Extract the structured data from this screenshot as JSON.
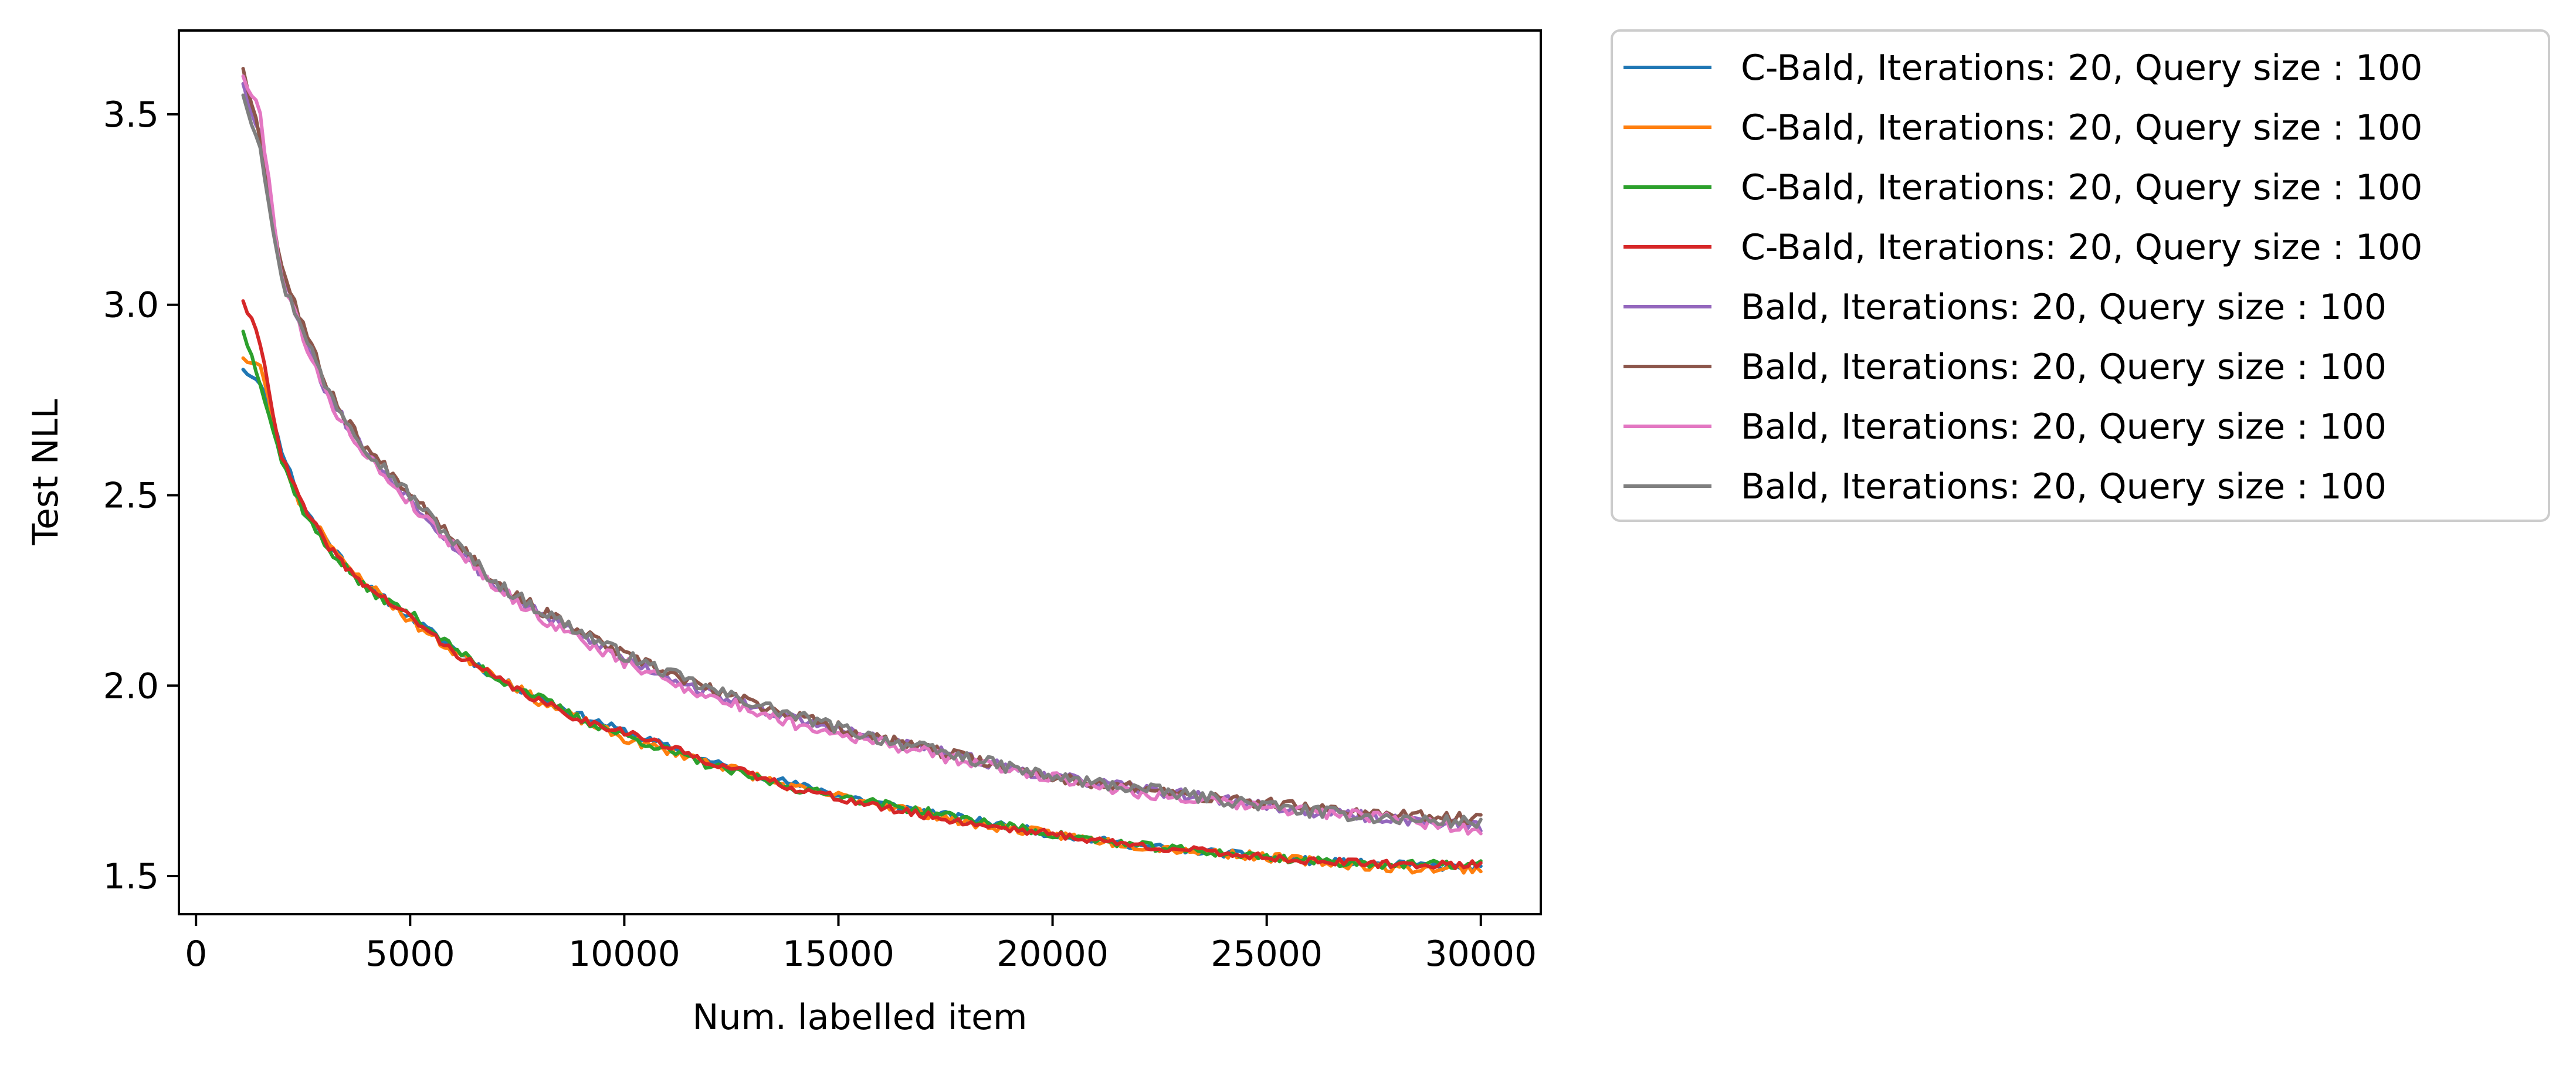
{
  "chart_data": {
    "type": "line",
    "title": "",
    "xlabel": "Num. labelled item",
    "ylabel": "Test NLL",
    "xlim": [
      -400,
      31400
    ],
    "ylim": [
      1.4,
      3.72
    ],
    "xticks": [
      0,
      5000,
      10000,
      15000,
      20000,
      25000,
      30000
    ],
    "xtick_labels": [
      "0",
      "5000",
      "10000",
      "15000",
      "20000",
      "25000",
      "30000"
    ],
    "yticks": [
      1.5,
      2.0,
      2.5,
      3.0,
      3.5
    ],
    "ytick_labels": [
      "1.5",
      "2.0",
      "2.5",
      "3.0",
      "3.5"
    ],
    "grid": false,
    "legend_position": "outside-right-top",
    "x": [
      1100,
      1500,
      2000,
      2500,
      3000,
      3500,
      4000,
      5000,
      6000,
      7000,
      8000,
      9000,
      10000,
      12000,
      14000,
      16000,
      18000,
      20000,
      22000,
      24000,
      26000,
      28000,
      30000
    ],
    "series": [
      {
        "name": "C-Bald, Iterations: 20, Query size : 100",
        "color": "#1f77b4",
        "values": [
          2.83,
          2.8,
          2.62,
          2.47,
          2.39,
          2.32,
          2.26,
          2.18,
          2.1,
          2.02,
          1.97,
          1.92,
          1.88,
          1.8,
          1.74,
          1.69,
          1.65,
          1.61,
          1.58,
          1.56,
          1.54,
          1.53,
          1.52
        ],
        "jitter": 0.01,
        "seed": 11
      },
      {
        "name": "C-Bald, Iterations: 20, Query size : 100",
        "color": "#ff7f0e",
        "values": [
          2.86,
          2.84,
          2.6,
          2.46,
          2.4,
          2.31,
          2.27,
          2.17,
          2.09,
          2.03,
          1.96,
          1.91,
          1.86,
          1.8,
          1.73,
          1.69,
          1.64,
          1.61,
          1.58,
          1.56,
          1.54,
          1.52,
          1.52
        ],
        "jitter": 0.012,
        "seed": 23
      },
      {
        "name": "C-Bald, Iterations: 20, Query size : 100",
        "color": "#2ca02c",
        "values": [
          2.93,
          2.8,
          2.59,
          2.46,
          2.37,
          2.31,
          2.25,
          2.19,
          2.1,
          2.02,
          1.97,
          1.91,
          1.87,
          1.79,
          1.73,
          1.69,
          1.65,
          1.61,
          1.58,
          1.56,
          1.54,
          1.53,
          1.53
        ],
        "jitter": 0.011,
        "seed": 37
      },
      {
        "name": "C-Bald, Iterations: 20, Query size : 100",
        "color": "#d62728",
        "values": [
          3.01,
          2.9,
          2.6,
          2.47,
          2.38,
          2.31,
          2.26,
          2.18,
          2.09,
          2.02,
          1.96,
          1.91,
          1.88,
          1.8,
          1.73,
          1.68,
          1.64,
          1.61,
          1.58,
          1.56,
          1.54,
          1.53,
          1.53
        ],
        "jitter": 0.01,
        "seed": 41
      },
      {
        "name": "Bald, Iterations: 20, Query size : 100",
        "color": "#9467bd",
        "values": [
          3.58,
          3.45,
          3.08,
          2.93,
          2.78,
          2.69,
          2.61,
          2.49,
          2.37,
          2.26,
          2.19,
          2.13,
          2.07,
          1.98,
          1.91,
          1.86,
          1.81,
          1.76,
          1.73,
          1.7,
          1.67,
          1.65,
          1.63
        ],
        "jitter": 0.014,
        "seed": 53
      },
      {
        "name": "Bald, Iterations: 20, Query size : 100",
        "color": "#8c564b",
        "values": [
          3.62,
          3.44,
          3.1,
          2.95,
          2.8,
          2.7,
          2.62,
          2.51,
          2.39,
          2.27,
          2.2,
          2.14,
          2.08,
          1.99,
          1.92,
          1.86,
          1.81,
          1.76,
          1.73,
          1.7,
          1.68,
          1.66,
          1.65
        ],
        "jitter": 0.015,
        "seed": 67
      },
      {
        "name": "Bald, Iterations: 20, Query size : 100",
        "color": "#e377c2",
        "values": [
          3.6,
          3.5,
          3.07,
          2.92,
          2.77,
          2.68,
          2.6,
          2.48,
          2.37,
          2.26,
          2.18,
          2.12,
          2.06,
          1.97,
          1.9,
          1.85,
          1.8,
          1.76,
          1.72,
          1.69,
          1.67,
          1.65,
          1.62
        ],
        "jitter": 0.015,
        "seed": 79
      },
      {
        "name": "Bald, Iterations: 20, Query size : 100",
        "color": "#7f7f7f",
        "values": [
          3.55,
          3.42,
          3.06,
          2.94,
          2.79,
          2.7,
          2.62,
          2.5,
          2.38,
          2.27,
          2.2,
          2.14,
          2.08,
          1.99,
          1.92,
          1.86,
          1.81,
          1.76,
          1.73,
          1.7,
          1.67,
          1.65,
          1.64
        ],
        "jitter": 0.016,
        "seed": 97
      }
    ]
  }
}
